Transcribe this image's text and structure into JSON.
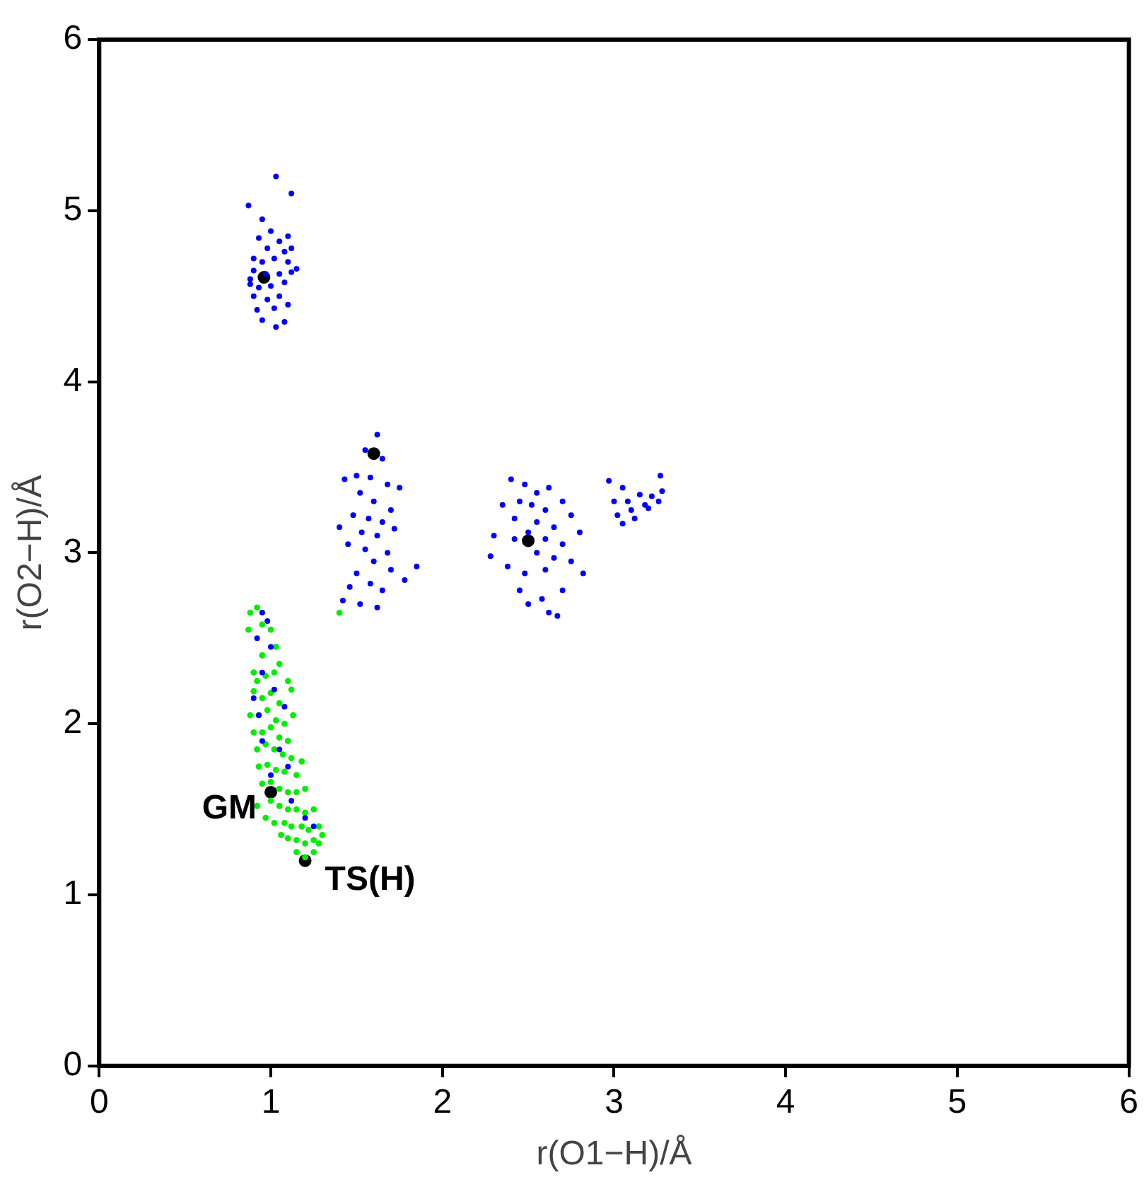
{
  "chart_data": {
    "type": "scatter",
    "xlabel": "r(O1−H)/Å",
    "ylabel": "r(O2−H)/Å",
    "xlim": [
      0,
      6
    ],
    "ylim": [
      0,
      6
    ],
    "xticks": [
      0,
      1,
      2,
      3,
      4,
      5,
      6
    ],
    "yticks": [
      0,
      1,
      2,
      3,
      4,
      5,
      6
    ],
    "grid": false,
    "legend": false,
    "marker": "circle",
    "annotations": [
      {
        "text": "GM",
        "x": 1.0,
        "y": 1.6
      },
      {
        "text": "TS(H)",
        "x": 1.2,
        "y": 1.2
      }
    ],
    "series": [
      {
        "color": "#0000ff",
        "x": [
          0.87,
          1.03,
          1.12,
          0.95,
          1.0,
          0.93,
          1.05,
          1.1,
          0.98,
          1.08,
          1.12,
          0.9,
          0.95,
          1.02,
          1.1,
          1.15,
          0.9,
          0.97,
          1.05,
          1.12,
          0.88,
          0.93,
          1.0,
          1.08,
          0.9,
          0.98,
          1.05,
          0.92,
          1.02,
          1.1,
          0.95,
          1.03,
          1.08,
          0.88,
          1.62,
          1.55,
          1.65,
          1.5,
          1.43,
          1.58,
          1.68,
          1.75,
          1.52,
          1.6,
          1.7,
          1.48,
          1.57,
          1.65,
          1.4,
          1.53,
          1.62,
          1.72,
          1.45,
          1.55,
          1.68,
          1.6,
          1.7,
          1.85,
          1.5,
          1.58,
          1.46,
          1.65,
          1.42,
          1.52,
          1.62,
          1.78,
          2.4,
          2.48,
          2.55,
          2.62,
          2.45,
          2.52,
          2.6,
          2.7,
          2.35,
          2.42,
          2.55,
          2.65,
          2.75,
          2.5,
          2.6,
          2.7,
          2.3,
          2.42,
          2.8,
          2.55,
          2.65,
          2.75,
          2.28,
          2.38,
          2.48,
          2.6,
          2.82,
          2.45,
          2.58,
          2.7,
          2.5,
          2.62,
          2.67,
          2.97,
          3.05,
          3.27,
          3.0,
          3.08,
          3.15,
          3.22,
          3.28,
          3.02,
          3.1,
          3.18,
          3.26,
          3.05,
          3.12,
          3.2,
          0.95,
          0.98,
          0.92,
          1.0,
          0.95,
          1.02,
          0.9,
          0.93,
          1.08,
          0.95,
          1.05,
          1.1,
          1.0,
          1.12,
          1.2,
          1.25
        ],
        "values": [
          5.03,
          5.2,
          5.1,
          4.95,
          4.88,
          4.84,
          4.82,
          4.85,
          4.78,
          4.76,
          4.78,
          4.72,
          4.7,
          4.72,
          4.7,
          4.66,
          4.65,
          4.63,
          4.63,
          4.64,
          4.57,
          4.55,
          4.56,
          4.58,
          4.5,
          4.48,
          4.5,
          4.42,
          4.43,
          4.45,
          4.36,
          4.32,
          4.35,
          4.6,
          3.69,
          3.6,
          3.55,
          3.45,
          3.43,
          3.44,
          3.4,
          3.38,
          3.35,
          3.3,
          3.25,
          3.22,
          3.2,
          3.18,
          3.15,
          3.12,
          3.1,
          3.14,
          3.05,
          3.02,
          3.0,
          2.95,
          2.9,
          2.92,
          2.88,
          2.82,
          2.8,
          2.78,
          2.72,
          2.7,
          2.68,
          2.84,
          3.43,
          3.4,
          3.35,
          3.38,
          3.3,
          3.28,
          3.25,
          3.3,
          3.28,
          3.2,
          3.18,
          3.15,
          3.22,
          3.12,
          3.08,
          3.05,
          3.1,
          3.08,
          3.12,
          3.0,
          2.97,
          2.95,
          2.98,
          2.92,
          2.88,
          2.9,
          2.88,
          2.78,
          2.73,
          2.78,
          2.7,
          2.65,
          2.63,
          3.42,
          3.38,
          3.45,
          3.3,
          3.3,
          3.34,
          3.33,
          3.36,
          3.22,
          3.25,
          3.28,
          3.3,
          3.17,
          3.2,
          3.26,
          2.65,
          2.6,
          2.5,
          2.45,
          2.3,
          2.2,
          2.15,
          2.05,
          2.1,
          1.9,
          1.85,
          1.75,
          1.7,
          1.55,
          1.45,
          1.4
        ]
      },
      {
        "color": "#00ee00",
        "x": [
          0.88,
          0.92,
          0.87,
          0.95,
          1.0,
          1.03,
          1.05,
          0.95,
          0.9,
          0.92,
          0.97,
          1.02,
          1.1,
          1.12,
          0.9,
          0.95,
          1.0,
          1.05,
          0.88,
          0.93,
          0.98,
          1.03,
          1.08,
          1.13,
          0.9,
          0.95,
          1.0,
          1.05,
          1.1,
          0.92,
          0.97,
          1.02,
          1.07,
          1.12,
          1.18,
          0.93,
          0.98,
          1.03,
          1.08,
          1.15,
          0.95,
          1.0,
          1.05,
          1.1,
          1.15,
          1.2,
          0.92,
          1.0,
          1.05,
          1.1,
          1.15,
          1.2,
          1.25,
          1.02,
          1.08,
          1.12,
          1.18,
          1.22,
          1.28,
          1.3,
          1.1,
          1.15,
          1.2,
          1.25,
          1.28,
          1.15,
          1.2,
          1.25,
          1.4,
          1.06,
          0.97
        ],
        "values": [
          2.65,
          2.68,
          2.55,
          2.58,
          2.55,
          2.45,
          2.35,
          2.4,
          2.3,
          2.25,
          2.28,
          2.3,
          2.25,
          2.2,
          2.19,
          2.15,
          2.18,
          2.12,
          2.05,
          2.05,
          2.08,
          2.02,
          2.0,
          2.05,
          1.95,
          1.95,
          1.98,
          1.92,
          1.9,
          1.85,
          1.88,
          1.85,
          1.82,
          1.8,
          1.78,
          1.75,
          1.76,
          1.73,
          1.72,
          1.7,
          1.65,
          1.66,
          1.62,
          1.6,
          1.6,
          1.62,
          1.52,
          1.55,
          1.52,
          1.5,
          1.5,
          1.48,
          1.5,
          1.42,
          1.42,
          1.4,
          1.4,
          1.38,
          1.4,
          1.35,
          1.33,
          1.32,
          1.3,
          1.32,
          1.3,
          1.25,
          1.22,
          1.25,
          2.65,
          1.35,
          1.45
        ]
      },
      {
        "color": "#000000",
        "x": [
          0.96,
          1.6,
          2.5,
          1.0,
          1.2
        ],
        "values": [
          4.61,
          3.58,
          3.07,
          1.6,
          1.2
        ]
      }
    ]
  }
}
